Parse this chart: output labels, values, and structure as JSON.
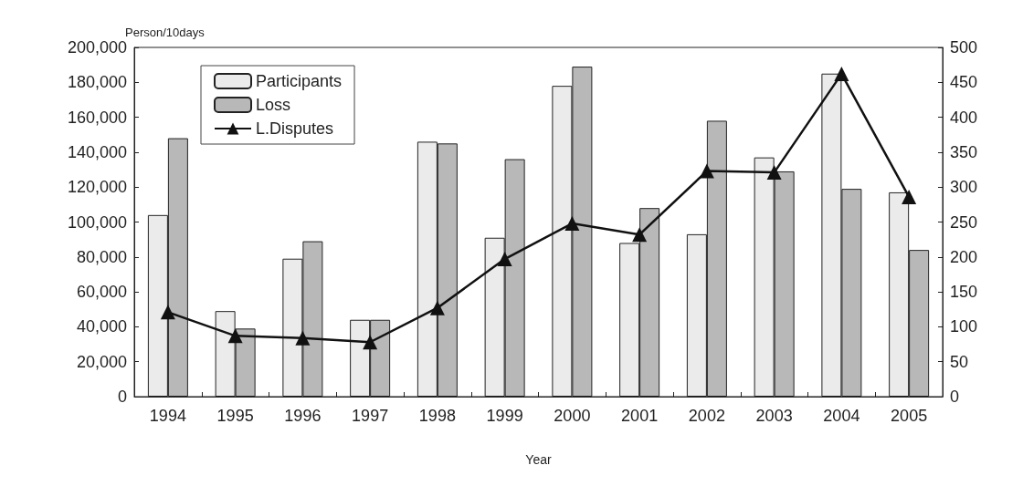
{
  "chart_data": {
    "type": "bar",
    "ylabel": "Person/10days",
    "xlabel": "Year",
    "categories": [
      "1994",
      "1995",
      "1996",
      "1997",
      "1998",
      "1999",
      "2000",
      "2001",
      "2002",
      "2003",
      "2004",
      "2005"
    ],
    "series": [
      {
        "name": "Participants",
        "color": "#ebebeb",
        "values": [
          104000,
          49000,
          79000,
          44000,
          146000,
          91000,
          178000,
          88000,
          93000,
          137000,
          185000,
          117000
        ]
      },
      {
        "name": "Loss",
        "color": "#b8b8b8",
        "values": [
          148000,
          39000,
          89000,
          44000,
          145000,
          136000,
          189000,
          108000,
          158000,
          129000,
          119000,
          84000
        ]
      },
      {
        "name": "L.Disputes",
        "type": "line",
        "axis": "y2",
        "color": "#111111",
        "values": [
          121,
          87,
          84,
          78,
          127,
          197,
          248,
          232,
          323,
          321,
          462,
          286
        ]
      }
    ],
    "ylim": [
      0,
      200000
    ],
    "yticks": [
      0,
      {
        "value": 20000,
        "label": "20,000"
      },
      {
        "value": 40000,
        "label": "40,000"
      },
      {
        "value": 60000,
        "label": "60,000"
      },
      {
        "value": 80000,
        "label": "80,000"
      },
      {
        "value": 100000,
        "label": "100,000"
      },
      {
        "value": 120000,
        "label": "120,000"
      },
      {
        "value": 140000,
        "label": "140,000"
      },
      {
        "value": 160000,
        "label": "160,000"
      },
      {
        "value": 180000,
        "label": "180,000"
      },
      {
        "value": 200000,
        "label": "200,000"
      }
    ],
    "y2lim": [
      0,
      500
    ],
    "y2ticks": [
      0,
      50,
      100,
      150,
      200,
      250,
      300,
      350,
      400,
      450,
      500
    ],
    "grid": false,
    "legend": "top left",
    "marker": "triangle",
    "line_style": "solid"
  }
}
